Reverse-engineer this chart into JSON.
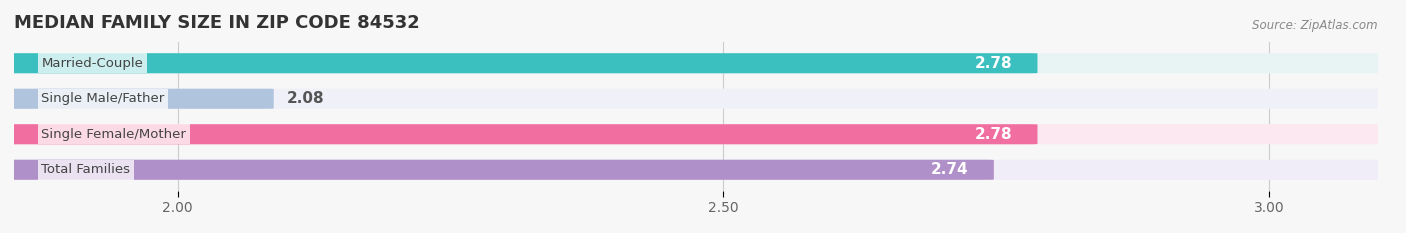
{
  "title": "MEDIAN FAMILY SIZE IN ZIP CODE 84532",
  "source": "Source: ZipAtlas.com",
  "categories": [
    "Married-Couple",
    "Single Male/Father",
    "Single Female/Mother",
    "Total Families"
  ],
  "values": [
    2.78,
    2.08,
    2.78,
    2.74
  ],
  "bar_colors": [
    "#3bbfbf",
    "#b0c4de",
    "#f06fa0",
    "#b090c8"
  ],
  "bar_bg_colors": [
    "#e8f4f4",
    "#f0f0f8",
    "#fce8f0",
    "#f0ecf8"
  ],
  "xlim": [
    1.85,
    3.1
  ],
  "xticks": [
    2.0,
    2.5,
    3.0
  ],
  "inside_label_threshold": 2.45,
  "background_color": "#f7f7f7",
  "title_fontsize": 13,
  "bar_height": 0.55,
  "bar_label_fontsize": 11,
  "cat_label_fontsize": 9.5
}
